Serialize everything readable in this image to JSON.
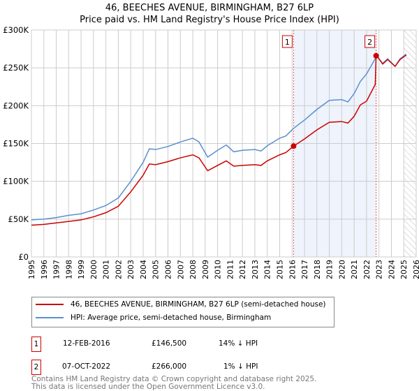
{
  "chart_data": {
    "type": "line",
    "title": "46, BEECHES AVENUE, BIRMINGHAM, B27 6LP",
    "subtitle": "Price paid vs. HM Land Registry's House Price Index (HPI)",
    "xlim": [
      1995,
      2026
    ],
    "ylim": [
      0,
      300000
    ],
    "x_ticks": [
      "1995",
      "1996",
      "1997",
      "1998",
      "1999",
      "2000",
      "2001",
      "2002",
      "2003",
      "2004",
      "2005",
      "2006",
      "2007",
      "2008",
      "2009",
      "2010",
      "2011",
      "2012",
      "2013",
      "2014",
      "2015",
      "2016",
      "2017",
      "2018",
      "2019",
      "2020",
      "2021",
      "2022",
      "2023",
      "2024",
      "2025",
      "2026"
    ],
    "y_ticks": [
      {
        "v": 0,
        "label": "£0"
      },
      {
        "v": 50000,
        "label": "£50K"
      },
      {
        "v": 100000,
        "label": "£100K"
      },
      {
        "v": 150000,
        "label": "£150K"
      },
      {
        "v": 200000,
        "label": "£200K"
      },
      {
        "v": 250000,
        "label": "£250K"
      },
      {
        "v": 300000,
        "label": "£300K"
      }
    ],
    "grid": true,
    "series": [
      {
        "name": "46, BEECHES AVENUE, BIRMINGHAM, B27 6LP (semi-detached house)",
        "color": "#cc0000",
        "x": [
          1995,
          1996,
          1997,
          1998,
          1999,
          2000,
          2001,
          2002,
          2003,
          2004,
          2004.5,
          2005,
          2006,
          2007,
          2008,
          2008.5,
          2009.2,
          2010,
          2010.7,
          2011.3,
          2012,
          2013,
          2013.5,
          2014,
          2015,
          2015.5,
          2016.12,
          2017,
          2018,
          2019,
          2020,
          2020.5,
          2021,
          2021.5,
          2022,
          2022.7,
          2022.77,
          2023,
          2023.3,
          2023.7,
          2024.3,
          2024.7,
          2025.2
        ],
        "values": [
          42000,
          43000,
          45000,
          47000,
          49000,
          53000,
          58500,
          67000,
          86000,
          108000,
          123000,
          122000,
          126000,
          131000,
          135000,
          131000,
          114000,
          121000,
          127000,
          120000,
          121000,
          122000,
          121000,
          127000,
          135000,
          138000,
          146500,
          156000,
          168000,
          178000,
          179000,
          177000,
          186000,
          201000,
          206000,
          228000,
          266000,
          262000,
          255000,
          261000,
          252000,
          261000,
          267000
        ]
      },
      {
        "name": "HPI: Average price, semi-detached house, Birmingham",
        "color": "#5b8fd0",
        "x": [
          1995,
          1996,
          1997,
          1998,
          1999,
          2000,
          2001,
          2002,
          2003,
          2004,
          2004.5,
          2005,
          2006,
          2007,
          2008,
          2008.5,
          2009.2,
          2010,
          2010.7,
          2011.3,
          2012,
          2013,
          2013.5,
          2014,
          2015,
          2015.5,
          2016.12,
          2017,
          2018,
          2019,
          2020,
          2020.5,
          2021,
          2021.5,
          2022,
          2022.7,
          2022.77,
          2023,
          2023.3,
          2023.7,
          2024.3,
          2024.7,
          2025.2
        ],
        "values": [
          49000,
          50000,
          52000,
          55000,
          57000,
          62000,
          68000,
          78000,
          100000,
          125000,
          143000,
          142000,
          146000,
          152000,
          157000,
          152000,
          132000,
          141000,
          148000,
          139000,
          141000,
          142000,
          140000,
          147000,
          157000,
          160000,
          170000,
          181000,
          195000,
          207000,
          208000,
          205000,
          216000,
          232000,
          242000,
          262000,
          268000,
          262000,
          256000,
          262000,
          252000,
          262000,
          268000
        ]
      }
    ],
    "sales": [
      {
        "num": "1",
        "x": 2016.12,
        "price": 146500,
        "date": "12-FEB-2016",
        "price_label": "£146,500",
        "delta": "14% ↓ HPI"
      },
      {
        "num": "2",
        "x": 2022.77,
        "price": 266000,
        "date": "07-OCT-2022",
        "price_label": "£266,000",
        "delta": "1% ↓ HPI"
      }
    ],
    "forecast_from": 2025,
    "legend_position": "below"
  },
  "footer": {
    "line1": "Contains HM Land Registry data © Crown copyright and database right 2025.",
    "line2": "This data is licensed under the Open Government Licence v3.0."
  }
}
